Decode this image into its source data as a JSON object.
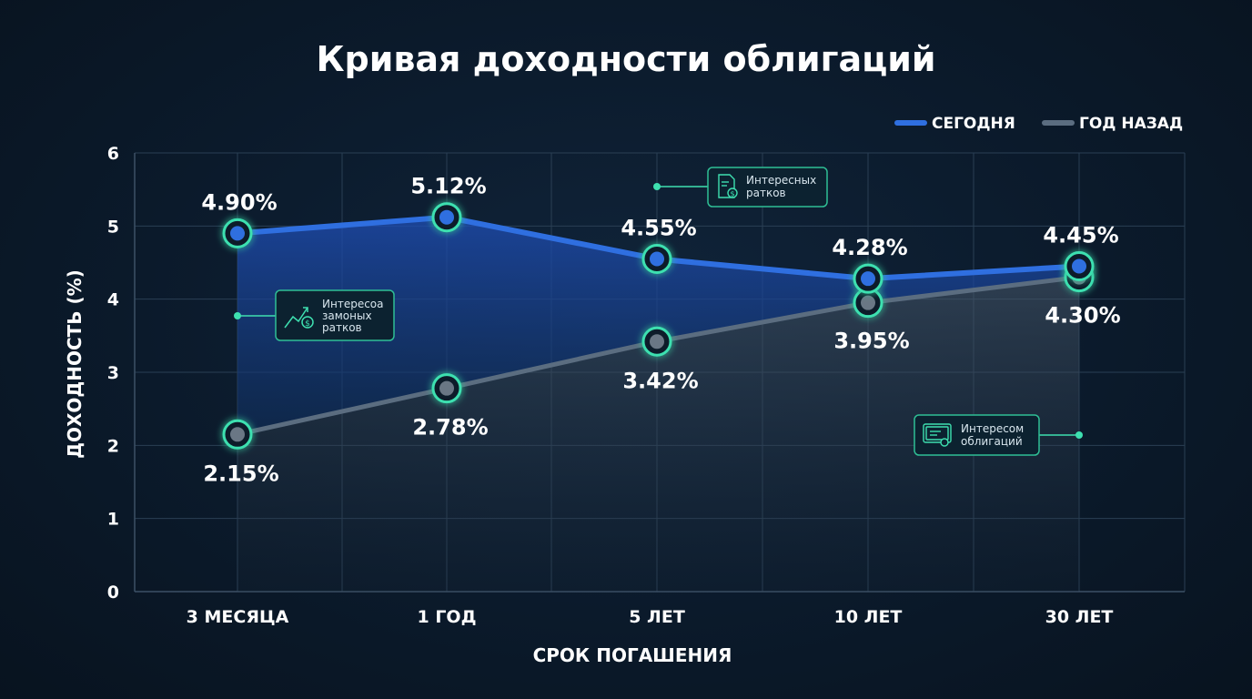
{
  "chart_data": {
    "type": "line",
    "title": "Кривая доходности облигаций",
    "xlabel": "СРОК ПОГАШЕНИЯ",
    "ylabel": "ДОХОДНОСТЬ (%)",
    "categories": [
      "3 МЕСЯЦА",
      "1 ГОД",
      "5 ЛЕТ",
      "10 ЛЕТ",
      "30 ЛЕТ"
    ],
    "ylim": [
      0,
      6
    ],
    "yticks": [
      0,
      1,
      2,
      3,
      4,
      5,
      6
    ],
    "grid": true,
    "legend_position": "top-right",
    "series": [
      {
        "name": "СЕГОДНЯ",
        "values": [
          4.9,
          5.12,
          4.55,
          4.28,
          4.45
        ],
        "labels": [
          "4.90%",
          "5.12%",
          "4.55%",
          "4.28%",
          "4.45%"
        ],
        "color": "#2f6fe0"
      },
      {
        "name": "ГОД НАЗАД",
        "values": [
          2.15,
          2.78,
          3.42,
          3.95,
          4.3
        ],
        "labels": [
          "2.15%",
          "2.78%",
          "3.42%",
          "3.95%",
          "4.30%"
        ],
        "color": "#5b6d80"
      }
    ],
    "annotations": [
      {
        "lines": [
          "Интересных",
          "ратков"
        ],
        "icon": "document-dollar-icon"
      },
      {
        "lines": [
          "Интересоа",
          "замоных",
          "ратков"
        ],
        "icon": "growth-coin-icon"
      },
      {
        "lines": [
          "Интересом",
          "облигаций"
        ],
        "icon": "certificate-icon"
      }
    ]
  },
  "colors": {
    "accent_glow": "#3ee0b0",
    "today": "#2f6fe0",
    "year_ago": "#5b6d80"
  }
}
